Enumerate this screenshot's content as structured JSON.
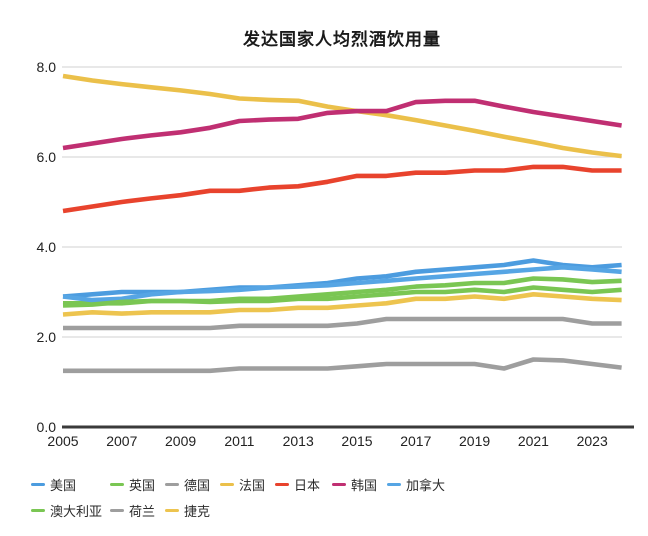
{
  "chart_data": {
    "type": "line",
    "title": "发达国家人均烈酒饮用量",
    "xlabel": "",
    "ylabel": "",
    "ylim": [
      0.0,
      8.0
    ],
    "grid": "horizontal-only",
    "legend_position": "bottom-left",
    "grid_color": "#d9d9d9",
    "axis_color": "#3a3a3a",
    "tick_label_color": "#222222",
    "y_ticks": [
      {
        "label": "0.0",
        "value": 0
      },
      {
        "label": "2.0",
        "value": 2
      },
      {
        "label": "4.0",
        "value": 4
      },
      {
        "label": "6.0",
        "value": 6
      },
      {
        "label": "8.0",
        "value": 8
      }
    ],
    "x_ticks": [
      {
        "label": "2005",
        "year": 2005
      },
      {
        "label": "2007",
        "year": 2007
      },
      {
        "label": "2009",
        "year": 2009
      },
      {
        "label": "2011",
        "year": 2011
      },
      {
        "label": "2013",
        "year": 2013
      },
      {
        "label": "2015",
        "year": 2015
      },
      {
        "label": "2017",
        "year": 2017
      },
      {
        "label": "2019",
        "year": 2019
      },
      {
        "label": "2021",
        "year": 2021
      },
      {
        "label": "2023",
        "year": 2023
      }
    ],
    "years": [
      2005,
      2006,
      2007,
      2008,
      2009,
      2010,
      2011,
      2012,
      2013,
      2014,
      2015,
      2016,
      2017,
      2018,
      2019,
      2020,
      2021,
      2022,
      2023,
      2024
    ],
    "series": [
      {
        "key": "usa",
        "label": "美国",
        "color": "#4C9CDF",
        "values": [
          2.9,
          2.95,
          3.0,
          3.0,
          3.0,
          3.05,
          3.1,
          3.1,
          3.15,
          3.2,
          3.3,
          3.35,
          3.45,
          3.5,
          3.55,
          3.6,
          3.7,
          3.6,
          3.55,
          3.6
        ]
      },
      {
        "key": "uk",
        "label": "英国",
        "color": "#7AC653",
        "values": [
          2.75,
          2.75,
          2.75,
          2.8,
          2.8,
          2.78,
          2.8,
          2.8,
          2.85,
          2.85,
          2.9,
          2.95,
          3.0,
          3.0,
          3.05,
          3.0,
          3.1,
          3.05,
          3.0,
          3.05
        ]
      },
      {
        "key": "germany",
        "label": "德国",
        "color": "#9E9E9E",
        "values": [
          2.2,
          2.2,
          2.2,
          2.2,
          2.2,
          2.2,
          2.25,
          2.25,
          2.25,
          2.25,
          2.3,
          2.4,
          2.4,
          2.4,
          2.4,
          2.4,
          2.4,
          2.4,
          2.3,
          2.3
        ]
      },
      {
        "key": "france",
        "label": "法国",
        "color": "#EBC04A",
        "values": [
          7.8,
          7.7,
          7.62,
          7.55,
          7.48,
          7.4,
          7.3,
          7.27,
          7.25,
          7.12,
          7.02,
          6.93,
          6.82,
          6.7,
          6.58,
          6.45,
          6.33,
          6.2,
          6.1,
          6.02
        ]
      },
      {
        "key": "japan",
        "label": "日本",
        "color": "#E8432D",
        "values": [
          4.8,
          4.9,
          5.0,
          5.08,
          5.15,
          5.25,
          5.25,
          5.32,
          5.35,
          5.45,
          5.58,
          5.58,
          5.65,
          5.65,
          5.7,
          5.7,
          5.78,
          5.78,
          5.7,
          5.7
        ]
      },
      {
        "key": "korea",
        "label": "韩国",
        "color": "#C02F72",
        "values": [
          6.2,
          6.3,
          6.4,
          6.48,
          6.55,
          6.65,
          6.8,
          6.83,
          6.85,
          6.98,
          7.02,
          7.02,
          7.22,
          7.25,
          7.25,
          7.12,
          7.0,
          6.9,
          6.8,
          6.7
        ]
      },
      {
        "key": "canada",
        "label": "加拿大",
        "color": "#56A5E4",
        "values": [
          2.9,
          2.82,
          2.85,
          2.95,
          3.0,
          3.02,
          3.05,
          3.1,
          3.12,
          3.15,
          3.2,
          3.25,
          3.3,
          3.35,
          3.4,
          3.45,
          3.5,
          3.55,
          3.5,
          3.45
        ]
      },
      {
        "key": "australia",
        "label": "澳大利亚",
        "color": "#7AC653",
        "values": [
          2.7,
          2.72,
          2.78,
          2.8,
          2.8,
          2.8,
          2.85,
          2.85,
          2.9,
          2.95,
          3.0,
          3.05,
          3.12,
          3.15,
          3.2,
          3.2,
          3.3,
          3.28,
          3.22,
          3.25
        ]
      },
      {
        "key": "netherlands",
        "label": "荷兰",
        "color": "#9E9E9E",
        "values": [
          1.25,
          1.25,
          1.25,
          1.25,
          1.25,
          1.25,
          1.3,
          1.3,
          1.3,
          1.3,
          1.35,
          1.4,
          1.4,
          1.4,
          1.4,
          1.3,
          1.5,
          1.48,
          1.4,
          1.32
        ]
      },
      {
        "key": "czech",
        "label": "捷克",
        "color": "#EDC44F",
        "values": [
          2.5,
          2.55,
          2.52,
          2.55,
          2.55,
          2.55,
          2.6,
          2.6,
          2.65,
          2.65,
          2.7,
          2.75,
          2.85,
          2.85,
          2.9,
          2.85,
          2.95,
          2.9,
          2.85,
          2.82
        ]
      }
    ]
  }
}
